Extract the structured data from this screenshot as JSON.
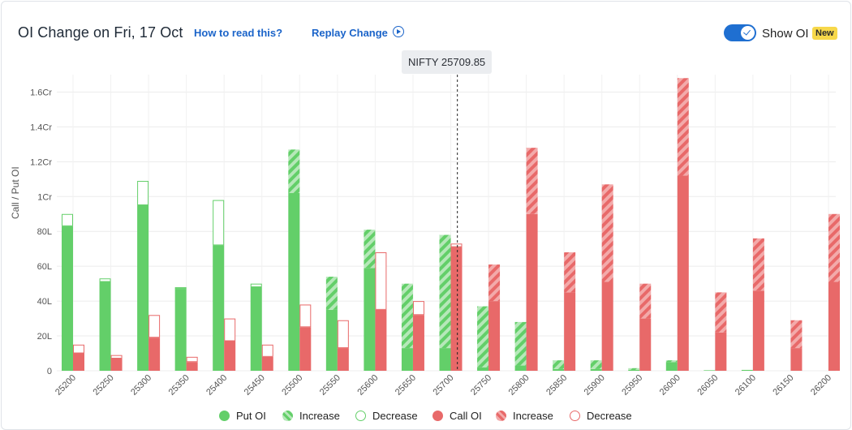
{
  "header": {
    "title": "OI Change on Fri, 17 Oct",
    "how_to_read": "How to read this?",
    "replay": "Replay Change",
    "toggle_label": "Show OI",
    "badge": "New"
  },
  "spot_tag": "NIFTY 25709.85",
  "colors": {
    "put": "#63cf69",
    "put_light": "#b6e8b9",
    "call": "#e86969",
    "call_light": "#f3aaaa",
    "accent": "#1b64c9"
  },
  "legend": [
    {
      "label": "Put OI",
      "style": "put-solid"
    },
    {
      "label": "Increase",
      "style": "put-hatch"
    },
    {
      "label": "Decrease",
      "style": "put-outline"
    },
    {
      "label": "Call OI",
      "style": "call-solid"
    },
    {
      "label": "Increase",
      "style": "call-hatch"
    },
    {
      "label": "Decrease",
      "style": "call-outline"
    }
  ],
  "chart_data": {
    "type": "bar",
    "ylabel": "Call / Put OI",
    "ylim": [
      0,
      170
    ],
    "y_ticks": [
      "0",
      "20L",
      "40L",
      "60L",
      "80L",
      "1Cr",
      "1.2Cr",
      "1.4Cr",
      "1.6Cr"
    ],
    "y_tick_values": [
      0,
      20,
      40,
      60,
      80,
      100,
      120,
      140,
      160
    ],
    "units": "lakh",
    "spot": 25709.85,
    "categories": [
      "25200",
      "25250",
      "25300",
      "25350",
      "25400",
      "25450",
      "25500",
      "25550",
      "25600",
      "25650",
      "25700",
      "25750",
      "25800",
      "25850",
      "25900",
      "25950",
      "26000",
      "26050",
      "26100",
      "26150",
      "26200"
    ],
    "series": [
      {
        "name": "Put OI",
        "values": [
          83,
          51,
          95,
          47,
          72,
          48,
          102,
          35,
          59,
          13,
          13,
          2,
          3,
          1,
          1,
          0.5,
          5,
          0.3,
          0.5,
          0,
          0
        ]
      },
      {
        "name": "Put OI Increase",
        "values": [
          0,
          0,
          0,
          0,
          0,
          0,
          25,
          19,
          22,
          37,
          65,
          35,
          25,
          5,
          5,
          1,
          1,
          0,
          0,
          0,
          0
        ]
      },
      {
        "name": "Put OI Decrease",
        "values": [
          7,
          2,
          14,
          1,
          26,
          2,
          0,
          0,
          0,
          0,
          0,
          0,
          0,
          0,
          0,
          0,
          0,
          0,
          0,
          0,
          0
        ]
      },
      {
        "name": "Call OI",
        "values": [
          10,
          7,
          19,
          5,
          17,
          8,
          25,
          13,
          35,
          32,
          71,
          40,
          90,
          45,
          51,
          30,
          112,
          22,
          46,
          13,
          51
        ]
      },
      {
        "name": "Call OI Increase",
        "values": [
          0,
          0,
          0,
          0,
          0,
          0,
          0,
          0,
          0,
          0,
          0,
          21,
          38,
          23,
          56,
          20,
          56,
          23,
          30,
          16,
          39
        ]
      },
      {
        "name": "Call OI Decrease",
        "values": [
          5,
          2,
          13,
          3,
          13,
          7,
          13,
          16,
          33,
          8,
          2,
          0,
          0,
          0,
          0,
          0,
          0,
          0,
          0,
          0,
          0
        ]
      }
    ]
  }
}
